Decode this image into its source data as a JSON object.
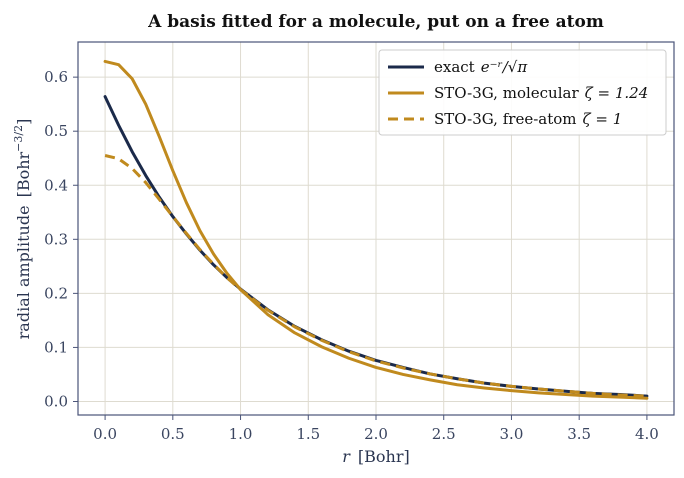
{
  "chart_data": {
    "type": "line",
    "title": "A basis fitted for a molecule, put on a free atom",
    "xlabel": {
      "var": "r",
      "unit": "[Bohr]"
    },
    "ylabel": {
      "text": "radial amplitude",
      "unit_base": "[Bohr",
      "unit_exp": "−3/2",
      "unit_close": "]"
    },
    "xlim": [
      -0.2,
      4.2
    ],
    "ylim": [
      -0.025,
      0.665
    ],
    "xticks": [
      0,
      0.5,
      1,
      1.5,
      2,
      2.5,
      3,
      3.5,
      4
    ],
    "xtick_labels": [
      "0.0",
      "0.5",
      "1.0",
      "1.5",
      "2.0",
      "2.5",
      "3.0",
      "3.5",
      "4.0"
    ],
    "yticks": [
      0,
      0.1,
      0.2,
      0.3,
      0.4,
      0.5,
      0.6
    ],
    "ytick_labels": [
      "0.0",
      "0.1",
      "0.2",
      "0.3",
      "0.4",
      "0.5",
      "0.6"
    ],
    "grid": true,
    "legend_position": "top-right",
    "series": [
      {
        "name": "exact",
        "legend": {
          "text": "exact",
          "math": "e⁻ʳ/√π"
        },
        "color": "#1b2a4a",
        "style": "solid",
        "x": [
          0.0,
          0.1,
          0.2,
          0.3,
          0.4,
          0.5,
          0.6,
          0.7,
          0.8,
          0.9,
          1.0,
          1.2,
          1.4,
          1.6,
          1.8,
          2.0,
          2.2,
          2.4,
          2.6,
          2.8,
          3.0,
          3.2,
          3.4,
          3.6,
          3.8,
          4.0
        ],
        "y": [
          0.564,
          0.511,
          0.462,
          0.418,
          0.378,
          0.342,
          0.31,
          0.28,
          0.253,
          0.229,
          0.208,
          0.17,
          0.139,
          0.114,
          0.093,
          0.076,
          0.063,
          0.051,
          0.042,
          0.034,
          0.028,
          0.023,
          0.019,
          0.015,
          0.013,
          0.01
        ]
      },
      {
        "name": "molecular",
        "legend": {
          "text": "STO-3G, molecular",
          "math": "ζ = 1.24"
        },
        "color": "#c08a1e",
        "style": "solid",
        "x": [
          0.0,
          0.1,
          0.2,
          0.3,
          0.4,
          0.5,
          0.6,
          0.7,
          0.8,
          0.9,
          1.0,
          1.2,
          1.4,
          1.6,
          1.8,
          2.0,
          2.2,
          2.4,
          2.6,
          2.8,
          3.0,
          3.2,
          3.4,
          3.6,
          3.8,
          4.0
        ],
        "y": [
          0.629,
          0.623,
          0.597,
          0.55,
          0.49,
          0.427,
          0.368,
          0.316,
          0.273,
          0.237,
          0.207,
          0.161,
          0.127,
          0.101,
          0.08,
          0.063,
          0.05,
          0.04,
          0.031,
          0.025,
          0.02,
          0.016,
          0.013,
          0.01,
          0.008,
          0.006
        ]
      },
      {
        "name": "free-atom",
        "legend": {
          "text": "STO-3G, free-atom",
          "math": "ζ = 1"
        },
        "color": "#c08a1e",
        "style": "dashed",
        "x": [
          0.0,
          0.1,
          0.2,
          0.3,
          0.4,
          0.5,
          0.6,
          0.7,
          0.8,
          0.9,
          1.0,
          1.2,
          1.4,
          1.6,
          1.8,
          2.0,
          2.2,
          2.4,
          2.6,
          2.8,
          3.0,
          3.2,
          3.4,
          3.6,
          3.8,
          4.0
        ],
        "y": [
          0.455,
          0.449,
          0.431,
          0.405,
          0.374,
          0.342,
          0.311,
          0.281,
          0.254,
          0.229,
          0.207,
          0.169,
          0.138,
          0.113,
          0.092,
          0.075,
          0.062,
          0.051,
          0.042,
          0.034,
          0.028,
          0.023,
          0.019,
          0.015,
          0.012,
          0.01
        ]
      }
    ]
  }
}
